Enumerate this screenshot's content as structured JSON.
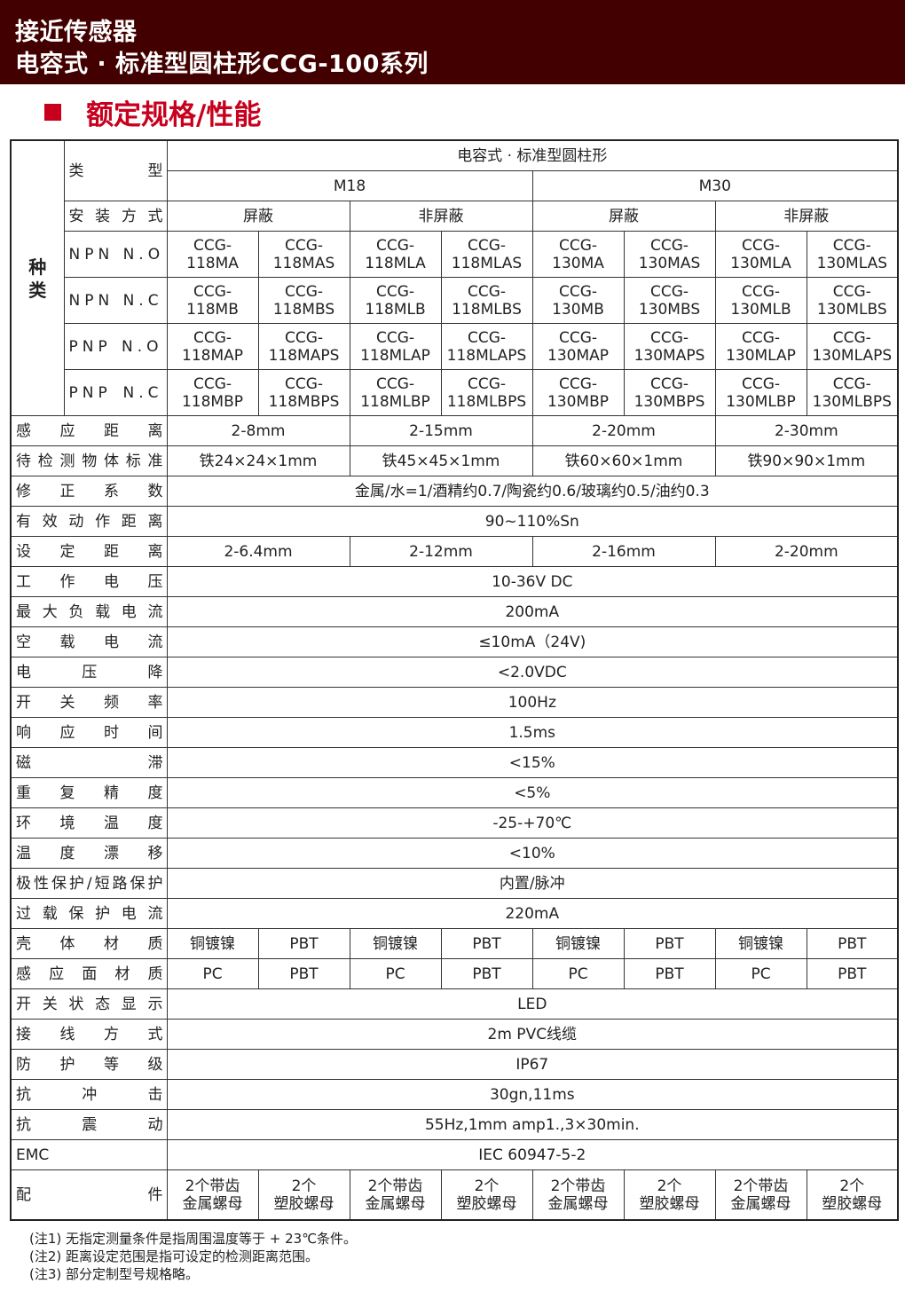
{
  "header": {
    "line1": "接近传感器",
    "line2": "电容式 · 标准型圆柱形CCG-100系列"
  },
  "section_title": "额定规格/性能",
  "table": {
    "kind_label": "种类",
    "type_label": "类型",
    "type_value": "电容式 · 标准型圆柱形",
    "sizes": [
      "M18",
      "M30"
    ],
    "mount_label": "安装方式",
    "mounts": [
      "屏蔽",
      "非屏蔽",
      "屏蔽",
      "非屏蔽"
    ],
    "models": [
      {
        "label": "NPN N.O",
        "values": [
          "CCG-\n118MA",
          "CCG-\n118MAS",
          "CCG-\n118MLA",
          "CCG-\n118MLAS",
          "CCG-\n130MA",
          "CCG-\n130MAS",
          "CCG-\n130MLA",
          "CCG-\n130MLAS"
        ]
      },
      {
        "label": "NPN N.C",
        "values": [
          "CCG-\n118MB",
          "CCG-\n118MBS",
          "CCG-\n118MLB",
          "CCG-\n118MLBS",
          "CCG-\n130MB",
          "CCG-\n130MBS",
          "CCG-\n130MLB",
          "CCG-\n130MLBS"
        ]
      },
      {
        "label": "PNP N.O",
        "values": [
          "CCG-\n118MAP",
          "CCG-\n118MAPS",
          "CCG-\n118MLAP",
          "CCG-\n118MLAPS",
          "CCG-\n130MAP",
          "CCG-\n130MAPS",
          "CCG-\n130MLAP",
          "CCG-\n130MLAPS"
        ]
      },
      {
        "label": "PNP N.C",
        "values": [
          "CCG-\n118MBP",
          "CCG-\n118MBPS",
          "CCG-\n118MLBP",
          "CCG-\n118MLBPS",
          "CCG-\n130MBP",
          "CCG-\n130MBPS",
          "CCG-\n130MLBP",
          "CCG-\n130MLBPS"
        ]
      }
    ],
    "specs": [
      {
        "label": "感应距离",
        "values": [
          "2-8mm",
          "2-15mm",
          "2-20mm",
          "2-30mm"
        ]
      },
      {
        "label": "待检测物体标准",
        "values": [
          "铁24×24×1mm",
          "铁45×45×1mm",
          "铁60×60×1mm",
          "铁90×90×1mm"
        ]
      },
      {
        "label": "修正系数",
        "values": [
          "金属/水=1/酒精约0.7/陶瓷约0.6/玻璃约0.5/油约0.3"
        ]
      },
      {
        "label": "有效动作距离",
        "values": [
          "90~110%Sn"
        ]
      },
      {
        "label": "设定距离",
        "values": [
          "2-6.4mm",
          "2-12mm",
          "2-16mm",
          "2-20mm"
        ]
      },
      {
        "label": "工作电压",
        "values": [
          "10-36V DC"
        ]
      },
      {
        "label": "最大负载电流",
        "values": [
          "200mA"
        ]
      },
      {
        "label": "空载电流",
        "values": [
          "≤10mA（24V)"
        ]
      },
      {
        "label": "电压降",
        "values": [
          "<2.0VDC"
        ]
      },
      {
        "label": "开关频率",
        "values": [
          "100Hz"
        ]
      },
      {
        "label": "响应时间",
        "values": [
          "1.5ms"
        ]
      },
      {
        "label": "磁滞",
        "values": [
          "<15%"
        ]
      },
      {
        "label": "重复精度",
        "values": [
          "<5%"
        ]
      },
      {
        "label": "环境温度",
        "values": [
          "-25-+70℃"
        ]
      },
      {
        "label": "温度漂移",
        "values": [
          "<10%"
        ]
      },
      {
        "label": "极性保护/短路保护",
        "values": [
          "内置/脉冲"
        ]
      },
      {
        "label": "过载保护电流",
        "values": [
          "220mA"
        ]
      },
      {
        "label": "壳体材质",
        "values": [
          "铜镀镍",
          "PBT",
          "铜镀镍",
          "PBT",
          "铜镀镍",
          "PBT",
          "铜镀镍",
          "PBT"
        ]
      },
      {
        "label": "感应面材质",
        "values": [
          "PC",
          "PBT",
          "PC",
          "PBT",
          "PC",
          "PBT",
          "PC",
          "PBT"
        ]
      },
      {
        "label": "开关状态显示",
        "values": [
          "LED"
        ]
      },
      {
        "label": "接线方式",
        "values": [
          "2m PVC线缆"
        ]
      },
      {
        "label": "防护等级",
        "values": [
          "IP67"
        ]
      },
      {
        "label": "抗冲击",
        "values": [
          "30gn,11ms"
        ]
      },
      {
        "label": "抗震动",
        "values": [
          "55Hz,1mm amp1.,3×30min."
        ]
      },
      {
        "label": "EMC",
        "values": [
          "IEC 60947-5-2"
        ]
      },
      {
        "label": "配件",
        "values": [
          "2个带齿\n金属螺母",
          "2个\n塑胶螺母",
          "2个带齿\n金属螺母",
          "2个\n塑胶螺母",
          "2个带齿\n金属螺母",
          "2个\n塑胶螺母",
          "2个带齿\n金属螺母",
          "2个\n塑胶螺母"
        ]
      }
    ]
  },
  "notes": [
    "(注1) 无指定测量条件是指周围温度等于 + 23℃条件。",
    "(注2) 距离设定范围是指可设定的检测距离范围。",
    "(注3) 部分定制型号规格略。"
  ]
}
